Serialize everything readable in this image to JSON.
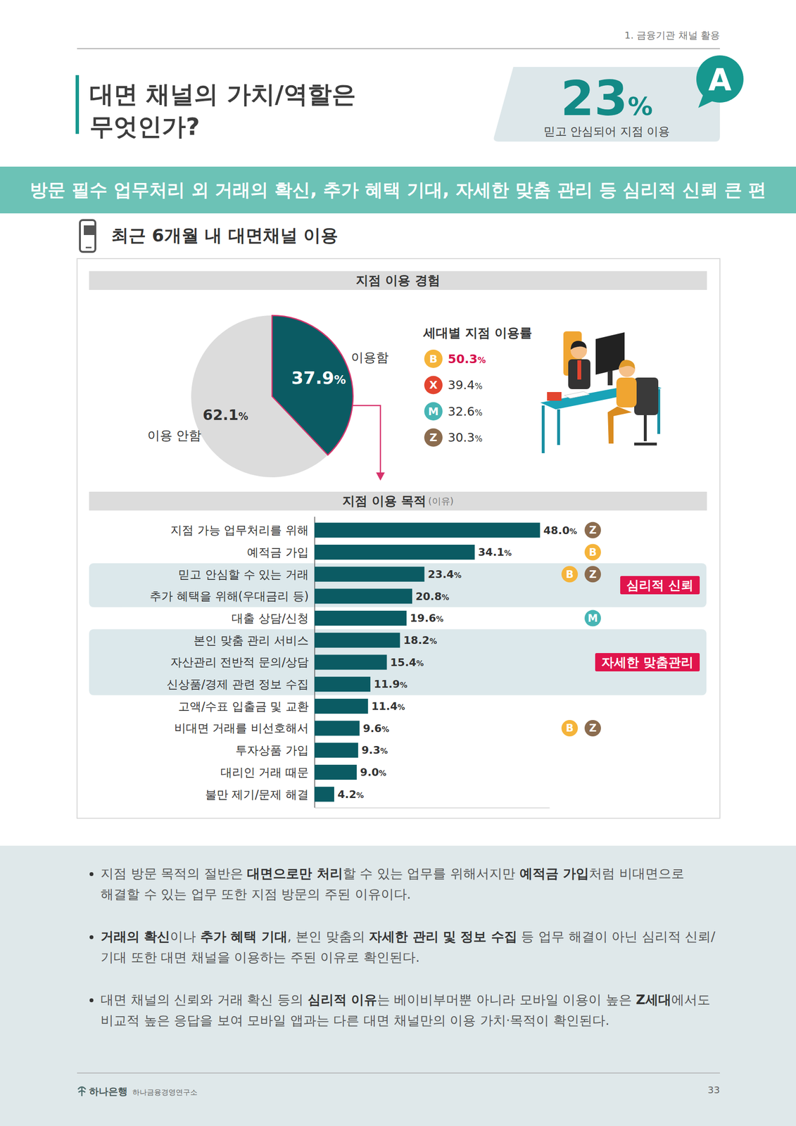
{
  "header": {
    "section": "1. 금융기관 채널 활용",
    "title_lines": [
      "대면 채널의 가치/역할은",
      "무엇인가?"
    ],
    "highlight": {
      "text": "23%",
      "caption": "믿고 안심되어 지점 이용",
      "badge": "A"
    }
  },
  "banner": "방문 필수 업무처리 외 거래의 확신, 추가 혜택 기대, 자세한 맞춤 관리 등 심리적 신뢰 큰 편",
  "section_title": "최근 6개월 내 대면채널 이용",
  "chart_data": [
    {
      "type": "pie",
      "title": "지점 이용 경험",
      "categories": [
        "이용함",
        "이용 안함"
      ],
      "values": [
        37.9,
        62.1
      ],
      "value_labels": [
        "37.9%",
        "62.1%"
      ],
      "colors": [
        "#0b5b63",
        "#dcdcdc"
      ],
      "data_labels": true,
      "generation_rates": {
        "title": "세대별 지점 이용률",
        "categories": [
          "B",
          "X",
          "M",
          "Z"
        ],
        "values": [
          50.3,
          39.4,
          32.6,
          30.3
        ],
        "value_labels": [
          "50.3%",
          "39.4%",
          "32.6%",
          "30.3%"
        ],
        "colors": [
          "#f5b43a",
          "#e3452f",
          "#47b5b4",
          "#8b6c4f"
        ]
      }
    },
    {
      "type": "bar",
      "orientation": "horizontal",
      "title": "지점 이용 목적",
      "subtitle": "(이유)",
      "categories": [
        "지점 가능 업무처리를 위해",
        "예적금 가입",
        "믿고 안심할 수 있는 거래",
        "추가 혜택을 위해(우대금리 등)",
        "대출 상담/신청",
        "본인 맞춤 관리 서비스",
        "자산관리 전반적 문의/상담",
        "신상품/경제 관련 정보 수집",
        "고액/수표 입출금 및 교환",
        "비대면 거래를 비선호해서",
        "투자상품 가입",
        "대리인 거래 때문",
        "불만 제기/문제 해결"
      ],
      "values": [
        48.0,
        34.1,
        23.4,
        20.8,
        19.6,
        18.2,
        15.4,
        11.9,
        11.4,
        9.6,
        9.3,
        9.0,
        4.2
      ],
      "value_labels": [
        "48.0%",
        "34.1%",
        "23.4%",
        "20.8%",
        "19.6%",
        "18.2%",
        "15.4%",
        "11.9%",
        "11.4%",
        "9.6%",
        "9.3%",
        "9.0%",
        "4.2%"
      ],
      "color": "#0b5b63",
      "xlim": [
        0,
        50
      ],
      "xticks": [
        0
      ],
      "tick_labels": false,
      "data_labels": true,
      "badges": [
        [
          "Z"
        ],
        [
          "B"
        ],
        [
          "B",
          "Z"
        ],
        [],
        [
          "M"
        ],
        [],
        [],
        [],
        [],
        [
          "B",
          "Z"
        ],
        [],
        [],
        []
      ],
      "groups": [
        {
          "label": "심리적 신뢰",
          "rows": [
            2,
            3
          ]
        },
        {
          "label": "자세한 맞춤관리",
          "rows": [
            5,
            6,
            7
          ]
        }
      ]
    }
  ],
  "notes": [
    [
      {
        "text": "지점 방문 목적의 절반은 "
      },
      {
        "text": "대면으로만 처리",
        "bold": true
      },
      {
        "text": "할 수 있는 업무를 위해서지만 "
      },
      {
        "text": "예적금 가입",
        "bold": true
      },
      {
        "text": "처럼 비대면으로 해결할 수 있는 업무 또한 지점 방문의 주된 이유이다."
      }
    ],
    [
      {
        "text": "거래의 확신",
        "bold": true
      },
      {
        "text": "이나 "
      },
      {
        "text": "추가 혜택 기대",
        "bold": true
      },
      {
        "text": ", 본인 맞춤의 "
      },
      {
        "text": "자세한 관리 및 정보 수집",
        "bold": true
      },
      {
        "text": " 등 업무 해결이 아닌 심리적 신뢰/기대 또한 대면 채널을 이용하는 주된 이유로 확인된다."
      }
    ],
    [
      {
        "text": "대면 채널의 신뢰와 거래 확신 등의 "
      },
      {
        "text": "심리적 이유",
        "bold": true
      },
      {
        "text": "는 베이비부머뿐 아니라 모바일 이용이 높은 "
      },
      {
        "text": "Z세대",
        "bold": true
      },
      {
        "text": "에서도 비교적 높은 응답을 보여 모바일 앱과는 다른 대면 채널만의 이용 가치·목적이 확인된다."
      }
    ]
  ],
  "footer": {
    "logo": "하나은행",
    "org": "하나금융경영연구소",
    "page": "33"
  }
}
